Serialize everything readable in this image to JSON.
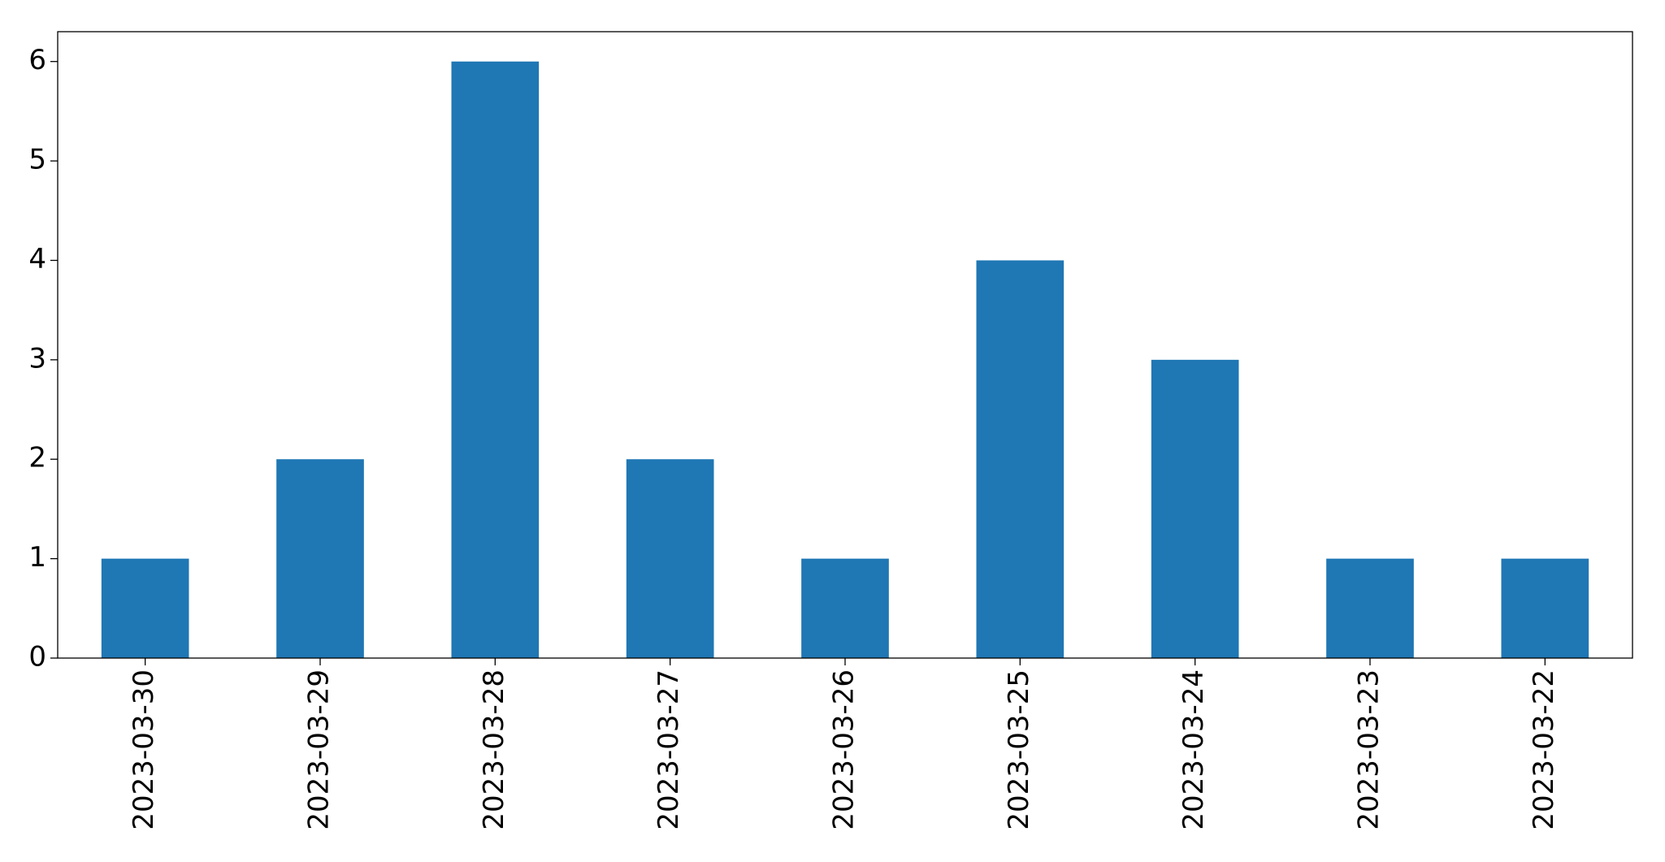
{
  "chart_data": {
    "type": "bar",
    "categories": [
      "2023-03-30",
      "2023-03-29",
      "2023-03-28",
      "2023-03-27",
      "2023-03-26",
      "2023-03-25",
      "2023-03-24",
      "2023-03-23",
      "2023-03-22"
    ],
    "values": [
      1,
      2,
      6,
      2,
      1,
      4,
      3,
      1,
      1
    ],
    "color": "#1f77b4",
    "ylim": [
      0,
      6.3
    ],
    "yticks": [
      0,
      1,
      2,
      3,
      4,
      5,
      6
    ],
    "grid": false
  }
}
